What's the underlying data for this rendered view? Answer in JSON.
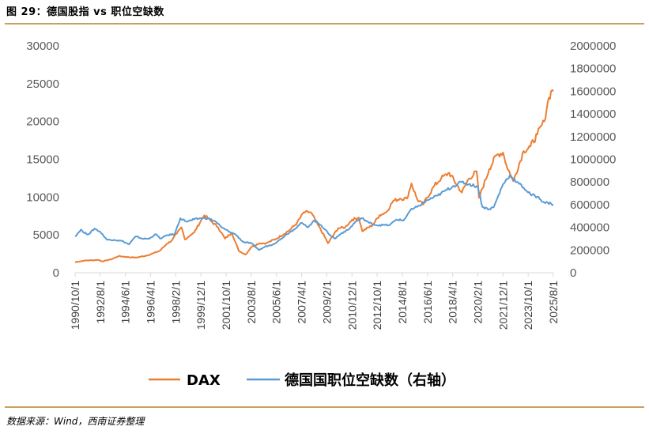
{
  "figure": {
    "title": "图 29：德国股指 vs 职位空缺数",
    "source": "数据来源：Wind，西南证券整理"
  },
  "colors": {
    "dax": "#ED7D31",
    "vacancies": "#5B9BD5",
    "rule": "#C8A25A",
    "axis": "#D9D9D9"
  },
  "chart_data": {
    "type": "line",
    "title": "",
    "xlabel": "",
    "ylabel": "",
    "x_tick_labels": [
      "1990/10/1",
      "1992/8/1",
      "1994/6/1",
      "1996/4/1",
      "1998/2/1",
      "1999/12/1",
      "2001/10/1",
      "2003/8/1",
      "2005/6/1",
      "2007/4/1",
      "2009/2/1",
      "2010/12/1",
      "2012/10/1",
      "2014/8/1",
      "2016/6/1",
      "2018/4/1",
      "2020/2/1",
      "2021/12/1",
      "2023/10/1",
      "2025/8/1"
    ],
    "y_left": {
      "min": 0,
      "max": 30000,
      "ticks": [
        "0",
        "5000",
        "10000",
        "15000",
        "20000",
        "25000",
        "30000"
      ]
    },
    "y_right": {
      "min": 0,
      "max": 2000000,
      "ticks": [
        "0",
        "200000",
        "400000",
        "600000",
        "800000",
        "1000000",
        "1200000",
        "1400000",
        "1600000",
        "1800000",
        "2000000"
      ]
    },
    "legend_position": "bottom",
    "grid": false,
    "series": [
      {
        "name": "DAX",
        "axis": "left",
        "points": [
          [
            "1990-10",
            1400
          ],
          [
            "1991-06",
            1600
          ],
          [
            "1992-06",
            1700
          ],
          [
            "1992-10",
            1500
          ],
          [
            "1993-06",
            1800
          ],
          [
            "1993-12",
            2200
          ],
          [
            "1994-06",
            2100
          ],
          [
            "1995-03",
            2000
          ],
          [
            "1995-12",
            2250
          ],
          [
            "1996-06",
            2550
          ],
          [
            "1996-12",
            2900
          ],
          [
            "1997-06",
            3800
          ],
          [
            "1997-10",
            4200
          ],
          [
            "1998-03",
            5200
          ],
          [
            "1998-07",
            6000
          ],
          [
            "1998-10",
            4400
          ],
          [
            "1999-03",
            5000
          ],
          [
            "1999-06",
            5300
          ],
          [
            "1999-12",
            6900
          ],
          [
            "2000-03",
            7600
          ],
          [
            "2000-09",
            6800
          ],
          [
            "2001-03",
            6000
          ],
          [
            "2001-09",
            4500
          ],
          [
            "2002-03",
            5300
          ],
          [
            "2002-09",
            2900
          ],
          [
            "2003-03",
            2400
          ],
          [
            "2003-08",
            3400
          ],
          [
            "2004-03",
            3900
          ],
          [
            "2004-09",
            3900
          ],
          [
            "2005-06",
            4500
          ],
          [
            "2006-06",
            5700
          ],
          [
            "2006-12",
            6600
          ],
          [
            "2007-06",
            8000
          ],
          [
            "2007-12",
            8000
          ],
          [
            "2008-06",
            6400
          ],
          [
            "2008-12",
            4800
          ],
          [
            "2009-03",
            3900
          ],
          [
            "2009-12",
            5900
          ],
          [
            "2010-06",
            6000
          ],
          [
            "2010-12",
            7000
          ],
          [
            "2011-06",
            7300
          ],
          [
            "2011-09",
            5500
          ],
          [
            "2012-06",
            6300
          ],
          [
            "2012-12",
            7600
          ],
          [
            "2013-06",
            8000
          ],
          [
            "2013-12",
            9500
          ],
          [
            "2014-06",
            9800
          ],
          [
            "2014-12",
            9800
          ],
          [
            "2015-04",
            11800
          ],
          [
            "2015-09",
            9700
          ],
          [
            "2016-02",
            9000
          ],
          [
            "2016-12",
            11500
          ],
          [
            "2017-06",
            12500
          ],
          [
            "2018-01",
            13200
          ],
          [
            "2018-12",
            10600
          ],
          [
            "2019-06",
            12400
          ],
          [
            "2020-01",
            13400
          ],
          [
            "2020-03",
            9900
          ],
          [
            "2020-12",
            13700
          ],
          [
            "2021-06",
            15500
          ],
          [
            "2021-12",
            15900
          ],
          [
            "2022-03",
            14200
          ],
          [
            "2022-09",
            12100
          ],
          [
            "2023-06",
            16100
          ],
          [
            "2023-12",
            16700
          ],
          [
            "2024-06",
            18300
          ],
          [
            "2024-12",
            20000
          ],
          [
            "2025-03",
            22500
          ],
          [
            "2025-06",
            24000
          ],
          [
            "2025-08",
            24000
          ]
        ]
      },
      {
        "name": "德国国职位空缺数（右轴）",
        "axis": "right",
        "points": [
          [
            "1990-10",
            320000
          ],
          [
            "1991-03",
            380000
          ],
          [
            "1991-06",
            350000
          ],
          [
            "1991-10",
            340000
          ],
          [
            "1992-03",
            390000
          ],
          [
            "1992-08",
            360000
          ],
          [
            "1993-02",
            290000
          ],
          [
            "1993-08",
            290000
          ],
          [
            "1994-03",
            280000
          ],
          [
            "1994-09",
            250000
          ],
          [
            "1995-03",
            320000
          ],
          [
            "1995-09",
            300000
          ],
          [
            "1996-03",
            300000
          ],
          [
            "1996-08",
            340000
          ],
          [
            "1997-01",
            300000
          ],
          [
            "1997-06",
            330000
          ],
          [
            "1998-01",
            340000
          ],
          [
            "1998-06",
            480000
          ],
          [
            "1998-12",
            450000
          ],
          [
            "1999-06",
            470000
          ],
          [
            "1999-12",
            480000
          ],
          [
            "2000-06",
            480000
          ],
          [
            "2001-01",
            450000
          ],
          [
            "2001-06",
            400000
          ],
          [
            "2002-01",
            360000
          ],
          [
            "2002-06",
            340000
          ],
          [
            "2003-01",
            270000
          ],
          [
            "2003-08",
            260000
          ],
          [
            "2004-03",
            200000
          ],
          [
            "2004-08",
            230000
          ],
          [
            "2005-03",
            250000
          ],
          [
            "2005-09",
            290000
          ],
          [
            "2006-03",
            340000
          ],
          [
            "2006-09",
            380000
          ],
          [
            "2007-04",
            440000
          ],
          [
            "2007-09",
            400000
          ],
          [
            "2008-03",
            460000
          ],
          [
            "2008-09",
            420000
          ],
          [
            "2009-03",
            350000
          ],
          [
            "2009-09",
            300000
          ],
          [
            "2010-03",
            350000
          ],
          [
            "2010-09",
            380000
          ],
          [
            "2011-03",
            450000
          ],
          [
            "2011-09",
            480000
          ],
          [
            "2012-03",
            440000
          ],
          [
            "2012-09",
            420000
          ],
          [
            "2013-03",
            420000
          ],
          [
            "2013-09",
            420000
          ],
          [
            "2014-03",
            470000
          ],
          [
            "2014-09",
            460000
          ],
          [
            "2015-03",
            550000
          ],
          [
            "2015-09",
            580000
          ],
          [
            "2016-06",
            640000
          ],
          [
            "2017-03",
            680000
          ],
          [
            "2017-09",
            720000
          ],
          [
            "2018-04",
            760000
          ],
          [
            "2018-12",
            800000
          ],
          [
            "2019-06",
            780000
          ],
          [
            "2020-02",
            760000
          ],
          [
            "2020-06",
            580000
          ],
          [
            "2020-12",
            560000
          ],
          [
            "2021-04",
            580000
          ],
          [
            "2021-12",
            780000
          ],
          [
            "2022-06",
            860000
          ],
          [
            "2022-12",
            800000
          ],
          [
            "2023-06",
            750000
          ],
          [
            "2023-12",
            690000
          ],
          [
            "2024-06",
            670000
          ],
          [
            "2024-12",
            620000
          ],
          [
            "2025-06",
            610000
          ],
          [
            "2025-08",
            600000
          ]
        ]
      }
    ]
  }
}
